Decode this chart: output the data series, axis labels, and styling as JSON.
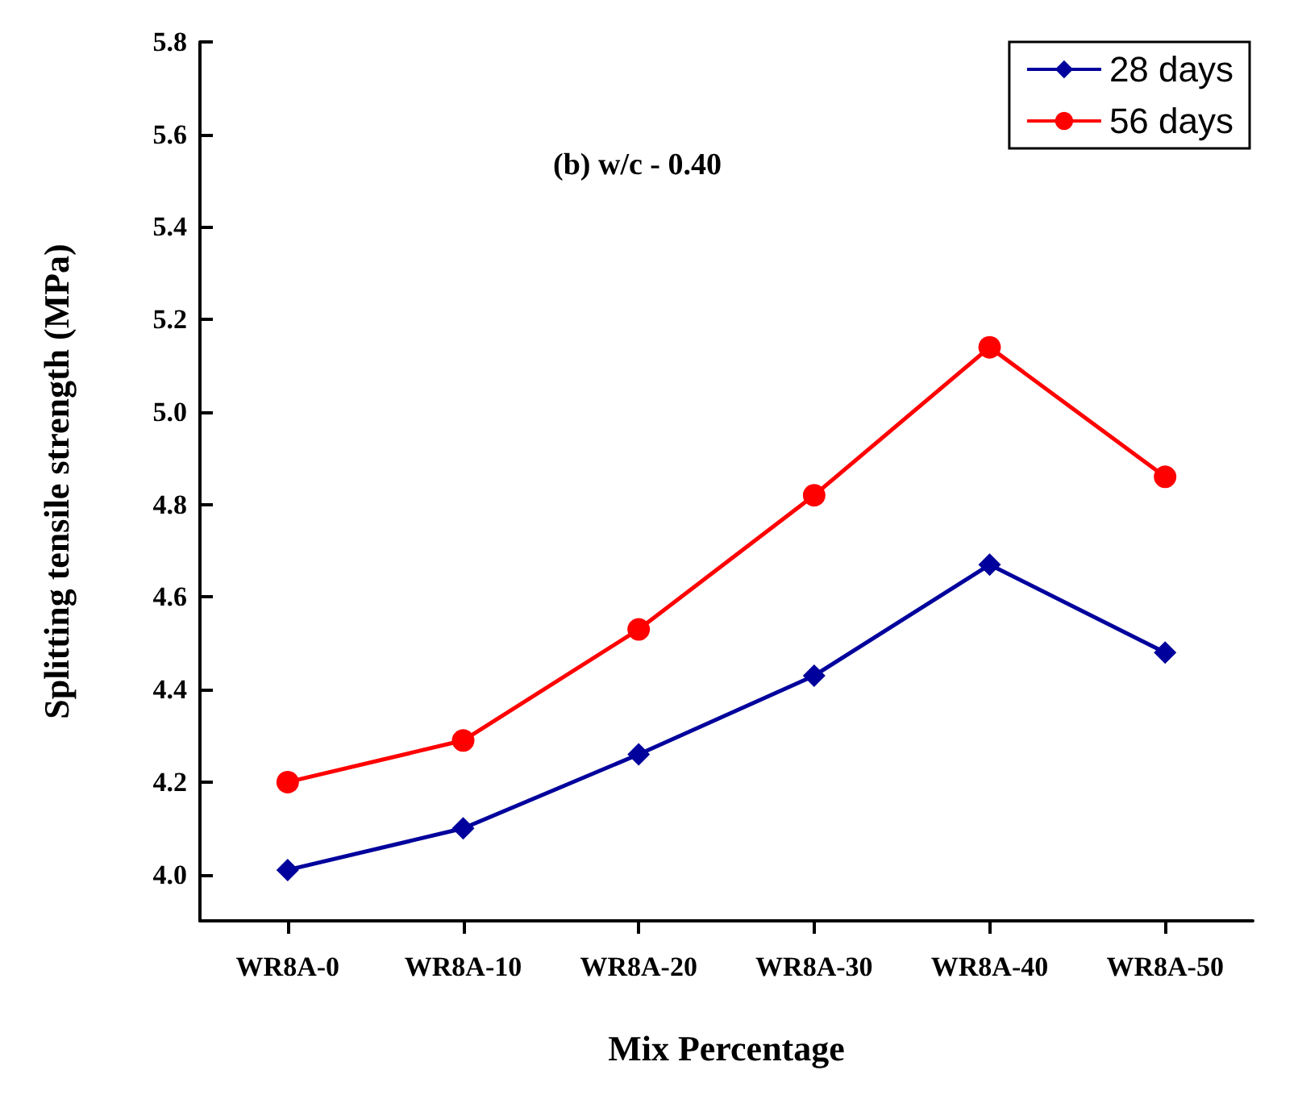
{
  "chart_data": {
    "type": "line",
    "title": "(b) w/c - 0.40",
    "xlabel": "Mix Percentage",
    "ylabel": "Splitting tensile strength (MPa)",
    "categories": [
      "WR8A-0",
      "WR8A-10",
      "WR8A-20",
      "WR8A-30",
      "WR8A-40",
      "WR8A-50"
    ],
    "series": [
      {
        "name": "28 days",
        "color": "#00009c",
        "marker": "diamond",
        "values": [
          4.01,
          4.1,
          4.26,
          4.43,
          4.67,
          4.48
        ]
      },
      {
        "name": "56 days",
        "color": "#ff0000",
        "marker": "circle",
        "values": [
          4.2,
          4.29,
          4.53,
          4.82,
          5.14,
          4.86
        ]
      }
    ],
    "ylim": [
      3.9,
      5.8
    ],
    "yticks": [
      {
        "value": 4.0,
        "label": "4.0"
      },
      4.2,
      4.4,
      4.6,
      4.8,
      {
        "value": 5.0,
        "label": "5.0"
      },
      5.2,
      5.4,
      5.6,
      5.8
    ],
    "grid": false,
    "legend": "top right",
    "line_style": "solid"
  }
}
